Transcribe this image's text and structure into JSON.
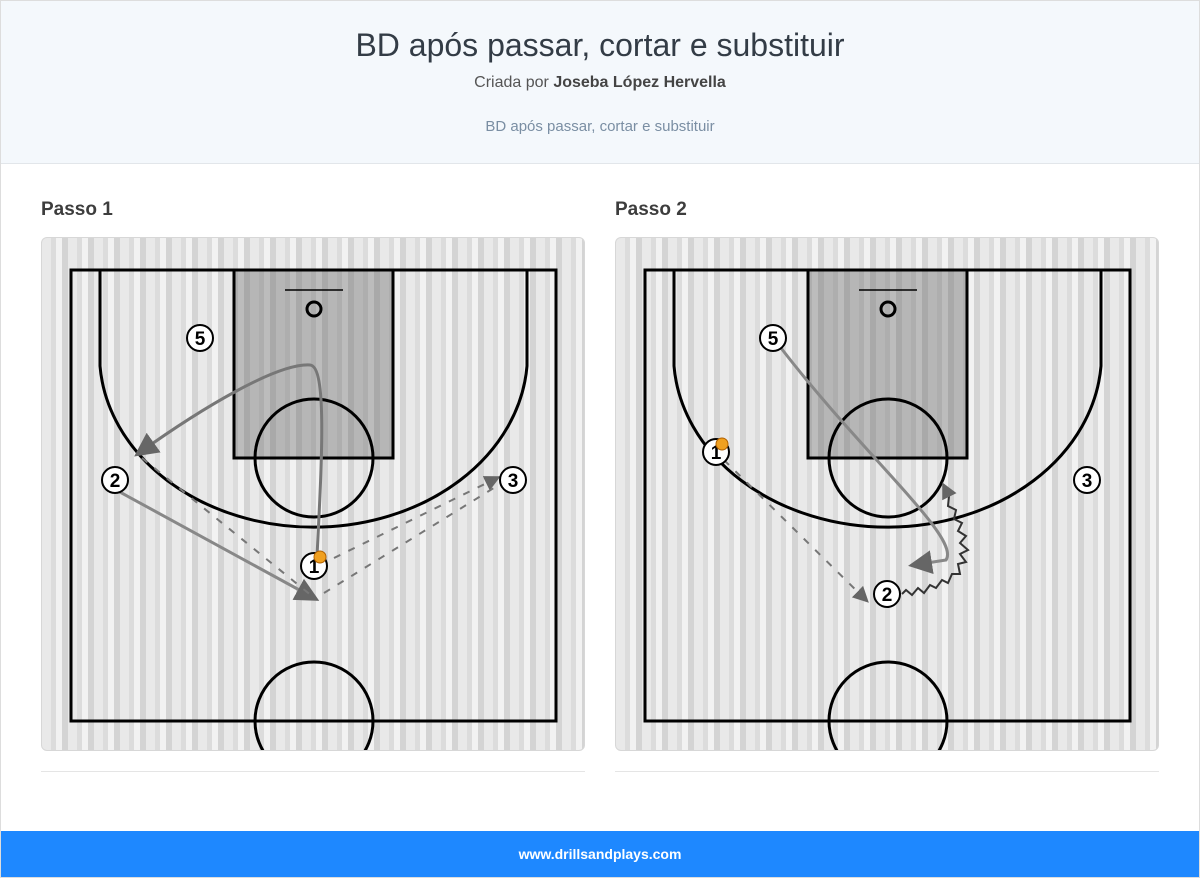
{
  "header": {
    "title": "BD após passar, cortar e substituir",
    "author_prefix": "Criada por",
    "author": "Joseba López Hervella",
    "subtitle": "BD após passar, cortar e substituir"
  },
  "steps": [
    {
      "title": "Passo 1",
      "players": [
        "5",
        "2",
        "1",
        "3"
      ]
    },
    {
      "title": "Passo 2",
      "players": [
        "5",
        "1",
        "3",
        "2"
      ]
    }
  ],
  "colors": {
    "ball": "#f0a020",
    "footer": "#1e88ff"
  },
  "footer": {
    "url": "www.drillsandplays.com"
  }
}
